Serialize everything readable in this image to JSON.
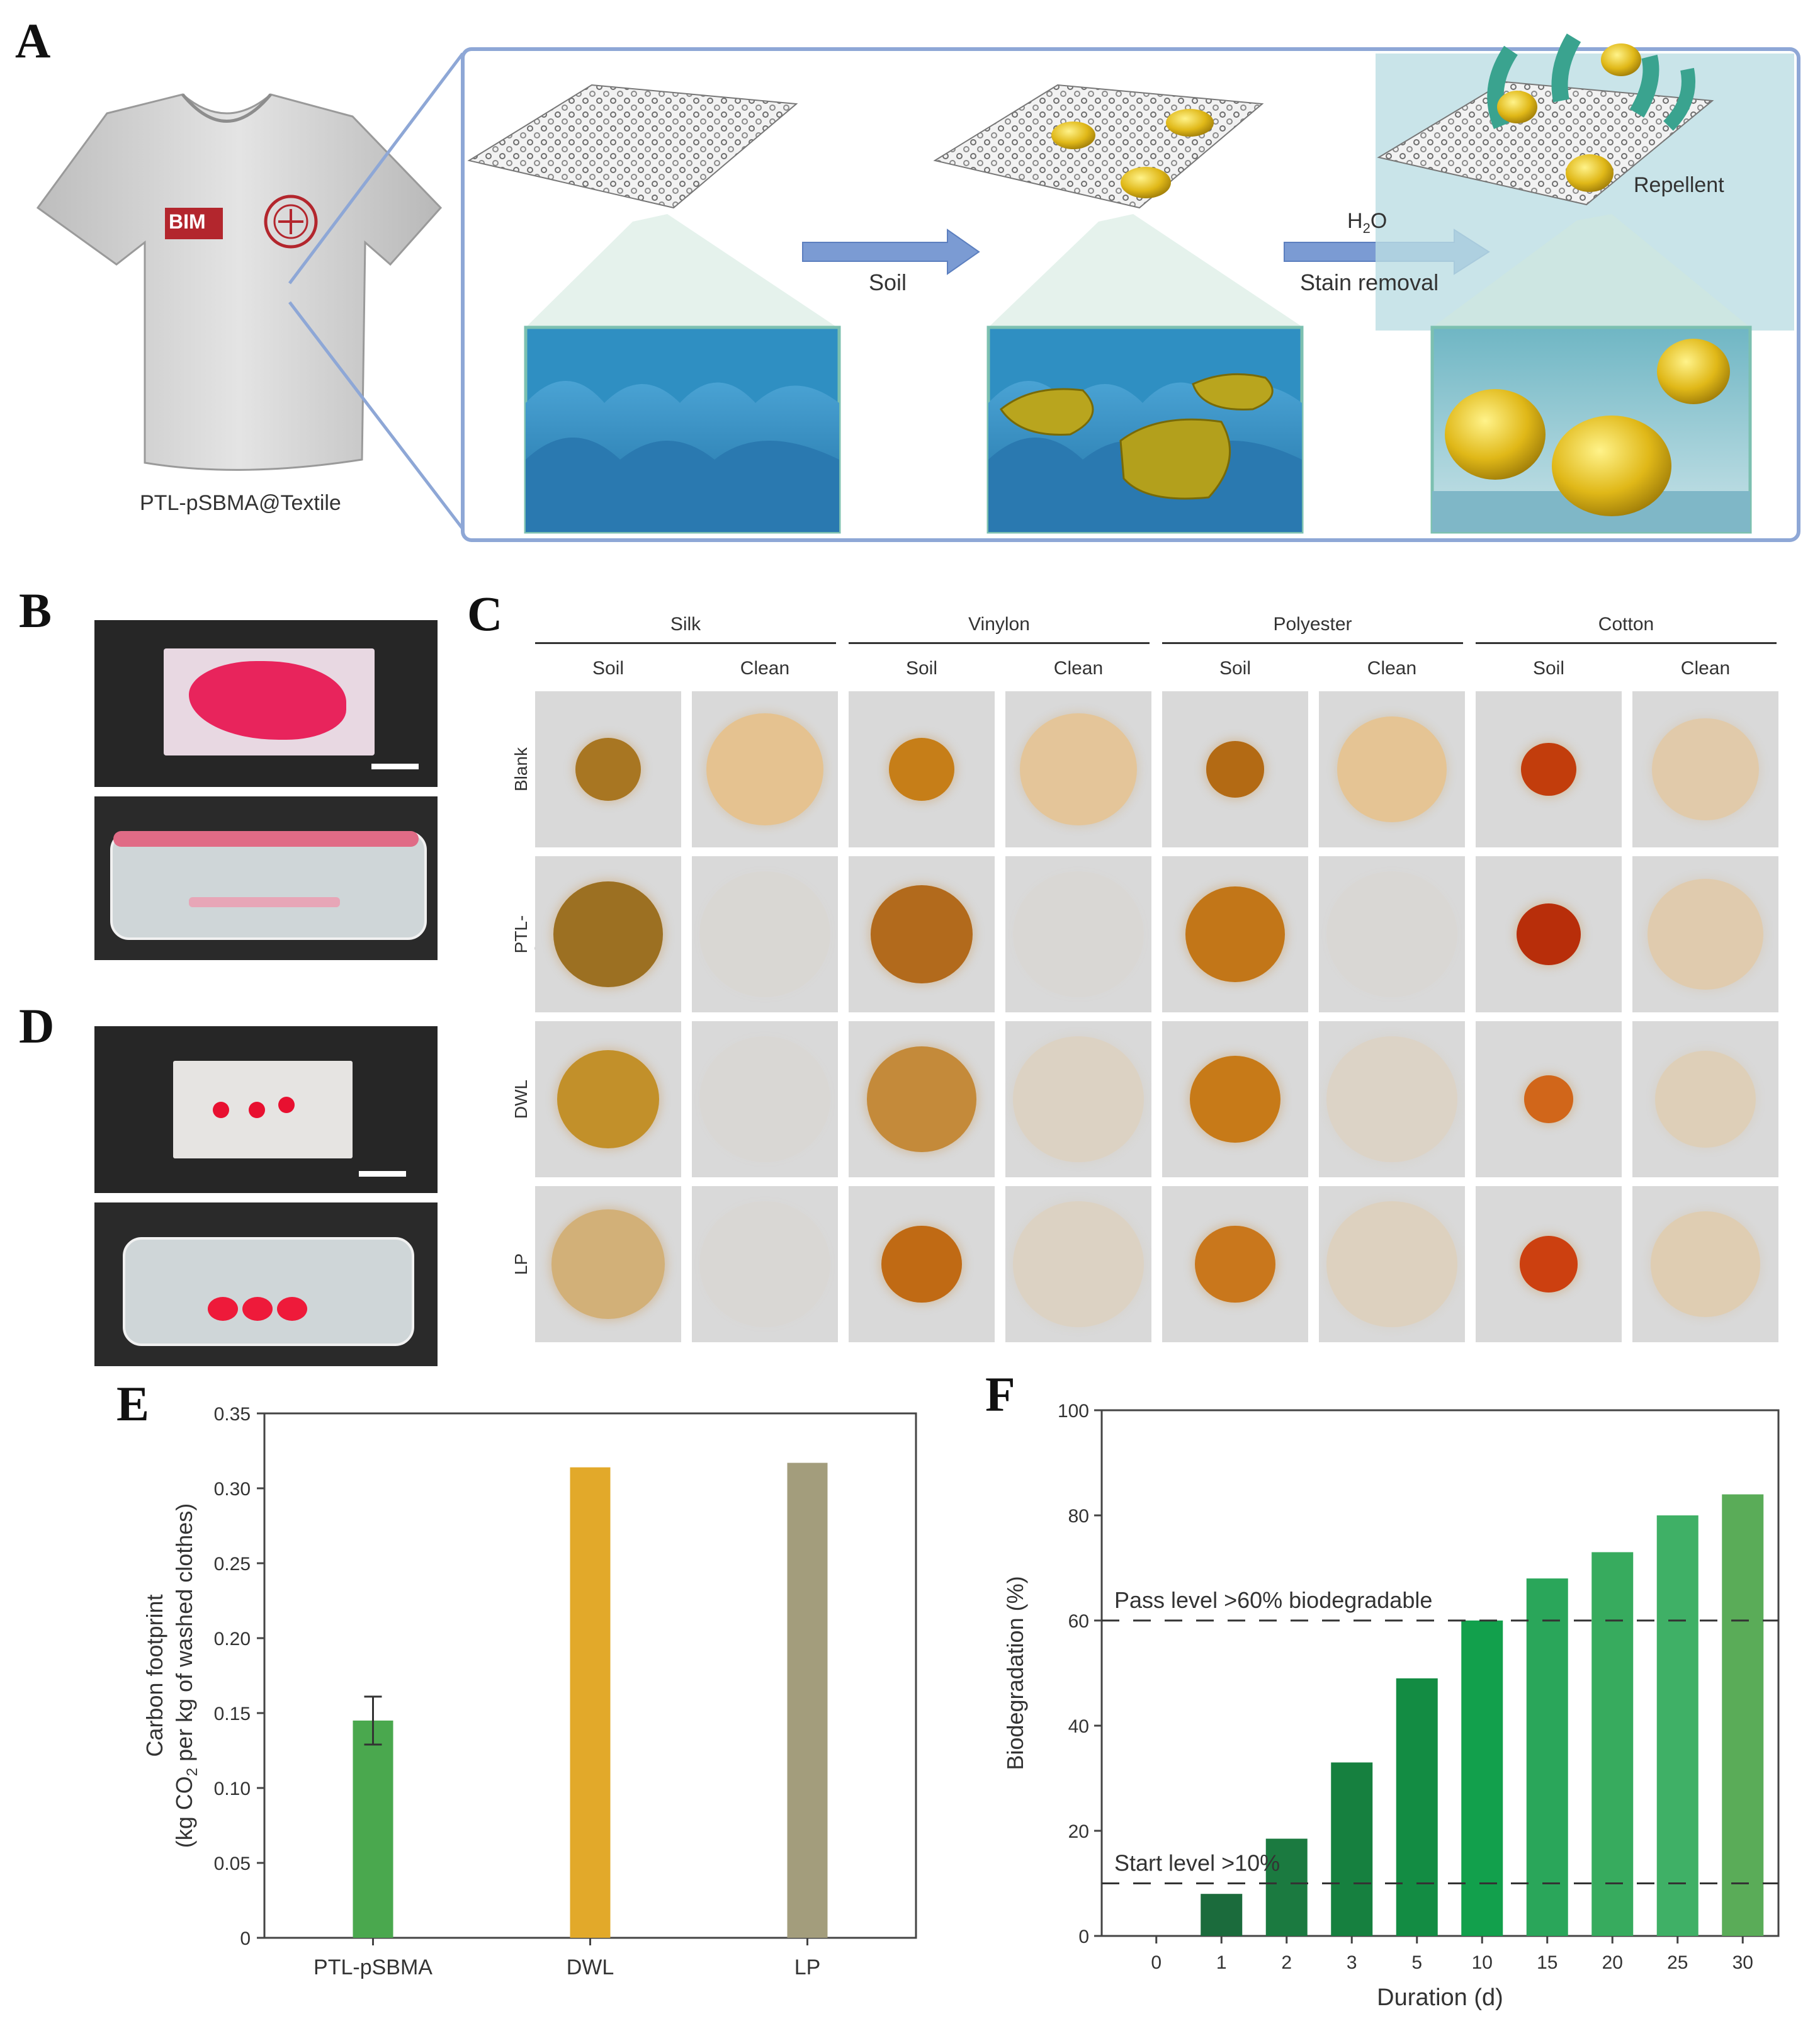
{
  "panels": {
    "A": {
      "letter": "A",
      "shirt_badge": "BIM",
      "shirt_caption": "PTL-pSBMA@Textile",
      "arrow1_label": "Soil",
      "arrow2_label_top": "H",
      "arrow2_label_sub": "2",
      "arrow2_label_end": "O",
      "arrow2_label_bottom": "Stain removal",
      "repellent_label": "Repellent"
    },
    "B": {
      "letter": "B"
    },
    "C": {
      "letter": "C",
      "fabrics": [
        "Silk",
        "Vinylon",
        "Polyester",
        "Cotton"
      ],
      "columns": [
        "Soil",
        "Clean",
        "Soil",
        "Clean",
        "Soil",
        "Clean",
        "Soil",
        "Clean"
      ],
      "rows": [
        "Blank",
        "PTL-pSBMA",
        "DWL",
        "LP"
      ]
    },
    "D": {
      "letter": "D"
    },
    "E": {
      "letter": "E"
    },
    "F": {
      "letter": "F"
    }
  },
  "chart_data": [
    {
      "panel": "E",
      "type": "bar",
      "categories": [
        "PTL-pSBMA",
        "DWL",
        "LP"
      ],
      "values": [
        0.145,
        0.314,
        0.317
      ],
      "errors": [
        0.016,
        0,
        0
      ],
      "colors": [
        "#4aa84e",
        "#e2a92a",
        "#a39d7c"
      ],
      "ylabel_line1": "Carbon footprint",
      "ylabel_line2_pre": "(kg CO",
      "ylabel_line2_sub": "2",
      "ylabel_line2_post": " per kg of washed clothes)",
      "ylim": [
        0,
        0.35
      ],
      "yticks": [
        "0",
        "0.05",
        "0.10",
        "0.15",
        "0.20",
        "0.25",
        "0.30",
        "0.35"
      ]
    },
    {
      "panel": "F",
      "type": "bar",
      "categories": [
        "0",
        "1",
        "2",
        "3",
        "5",
        "10",
        "15",
        "20",
        "25",
        "30"
      ],
      "values": [
        0,
        8,
        18.5,
        33,
        49,
        60,
        68,
        73,
        80,
        84
      ],
      "colors": [
        "#1f7a45",
        "#1b6b3c",
        "#1b7a40",
        "#16803f",
        "#138c43",
        "#12a04c",
        "#2aa65a",
        "#37ab5e",
        "#3fb066",
        "#5aac58"
      ],
      "xlabel": "Duration (d)",
      "ylabel": "Biodegradation (%)",
      "ylim": [
        0,
        100
      ],
      "yticks": [
        "0",
        "20",
        "40",
        "60",
        "80",
        "100"
      ],
      "reference_lines": [
        {
          "value": 60,
          "label": "Pass level >60% biodegradable"
        },
        {
          "value": 10,
          "label": "Start level >10%"
        }
      ]
    }
  ]
}
